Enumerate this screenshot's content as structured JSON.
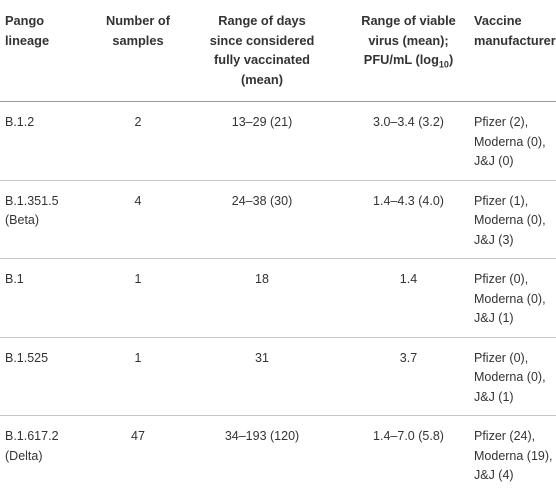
{
  "table": {
    "headers": [
      [
        "Pango",
        "lineage"
      ],
      [
        "Number of",
        "samples"
      ],
      [
        "Range of days",
        "since considered",
        "fully vaccinated",
        "(mean)"
      ],
      [
        "Range of viable",
        "virus (mean);"
      ],
      [
        "Vaccine",
        "manufacturer"
      ]
    ],
    "header_pfu_prefix": "PFU/mL (log",
    "header_pfu_sub": "10",
    "header_pfu_suffix": ")",
    "rows": [
      {
        "lineage": [
          "B.1.2"
        ],
        "samples": "2",
        "days": "13–29 (21)",
        "virus": "3.0–3.4 (3.2)",
        "manufacturer": [
          "Pfizer (2),",
          "Moderna (0),",
          "J&J (0)"
        ]
      },
      {
        "lineage": [
          "B.1.351.5",
          "(Beta)"
        ],
        "samples": "4",
        "days": "24–38 (30)",
        "virus": "1.4–4.3 (4.0)",
        "manufacturer": [
          "Pfizer (1),",
          "Moderna (0),",
          "J&J (3)"
        ]
      },
      {
        "lineage": [
          "B.1"
        ],
        "samples": "1",
        "days": "18",
        "virus": "1.4",
        "manufacturer": [
          "Pfizer (0),",
          "Moderna (0),",
          "J&J (1)"
        ]
      },
      {
        "lineage": [
          "B.1.525"
        ],
        "samples": "1",
        "days": "31",
        "virus": "3.7",
        "manufacturer": [
          "Pfizer (0),",
          "Moderna (0),",
          "J&J (1)"
        ]
      },
      {
        "lineage": [
          "B.1.617.2",
          "(Delta)"
        ],
        "samples": "47",
        "days": "34–193 (120)",
        "virus": "1.4–7.0 (5.8)",
        "manufacturer": [
          "Pfizer (24),",
          "Moderna (19),",
          "J&J (4)"
        ]
      }
    ]
  }
}
